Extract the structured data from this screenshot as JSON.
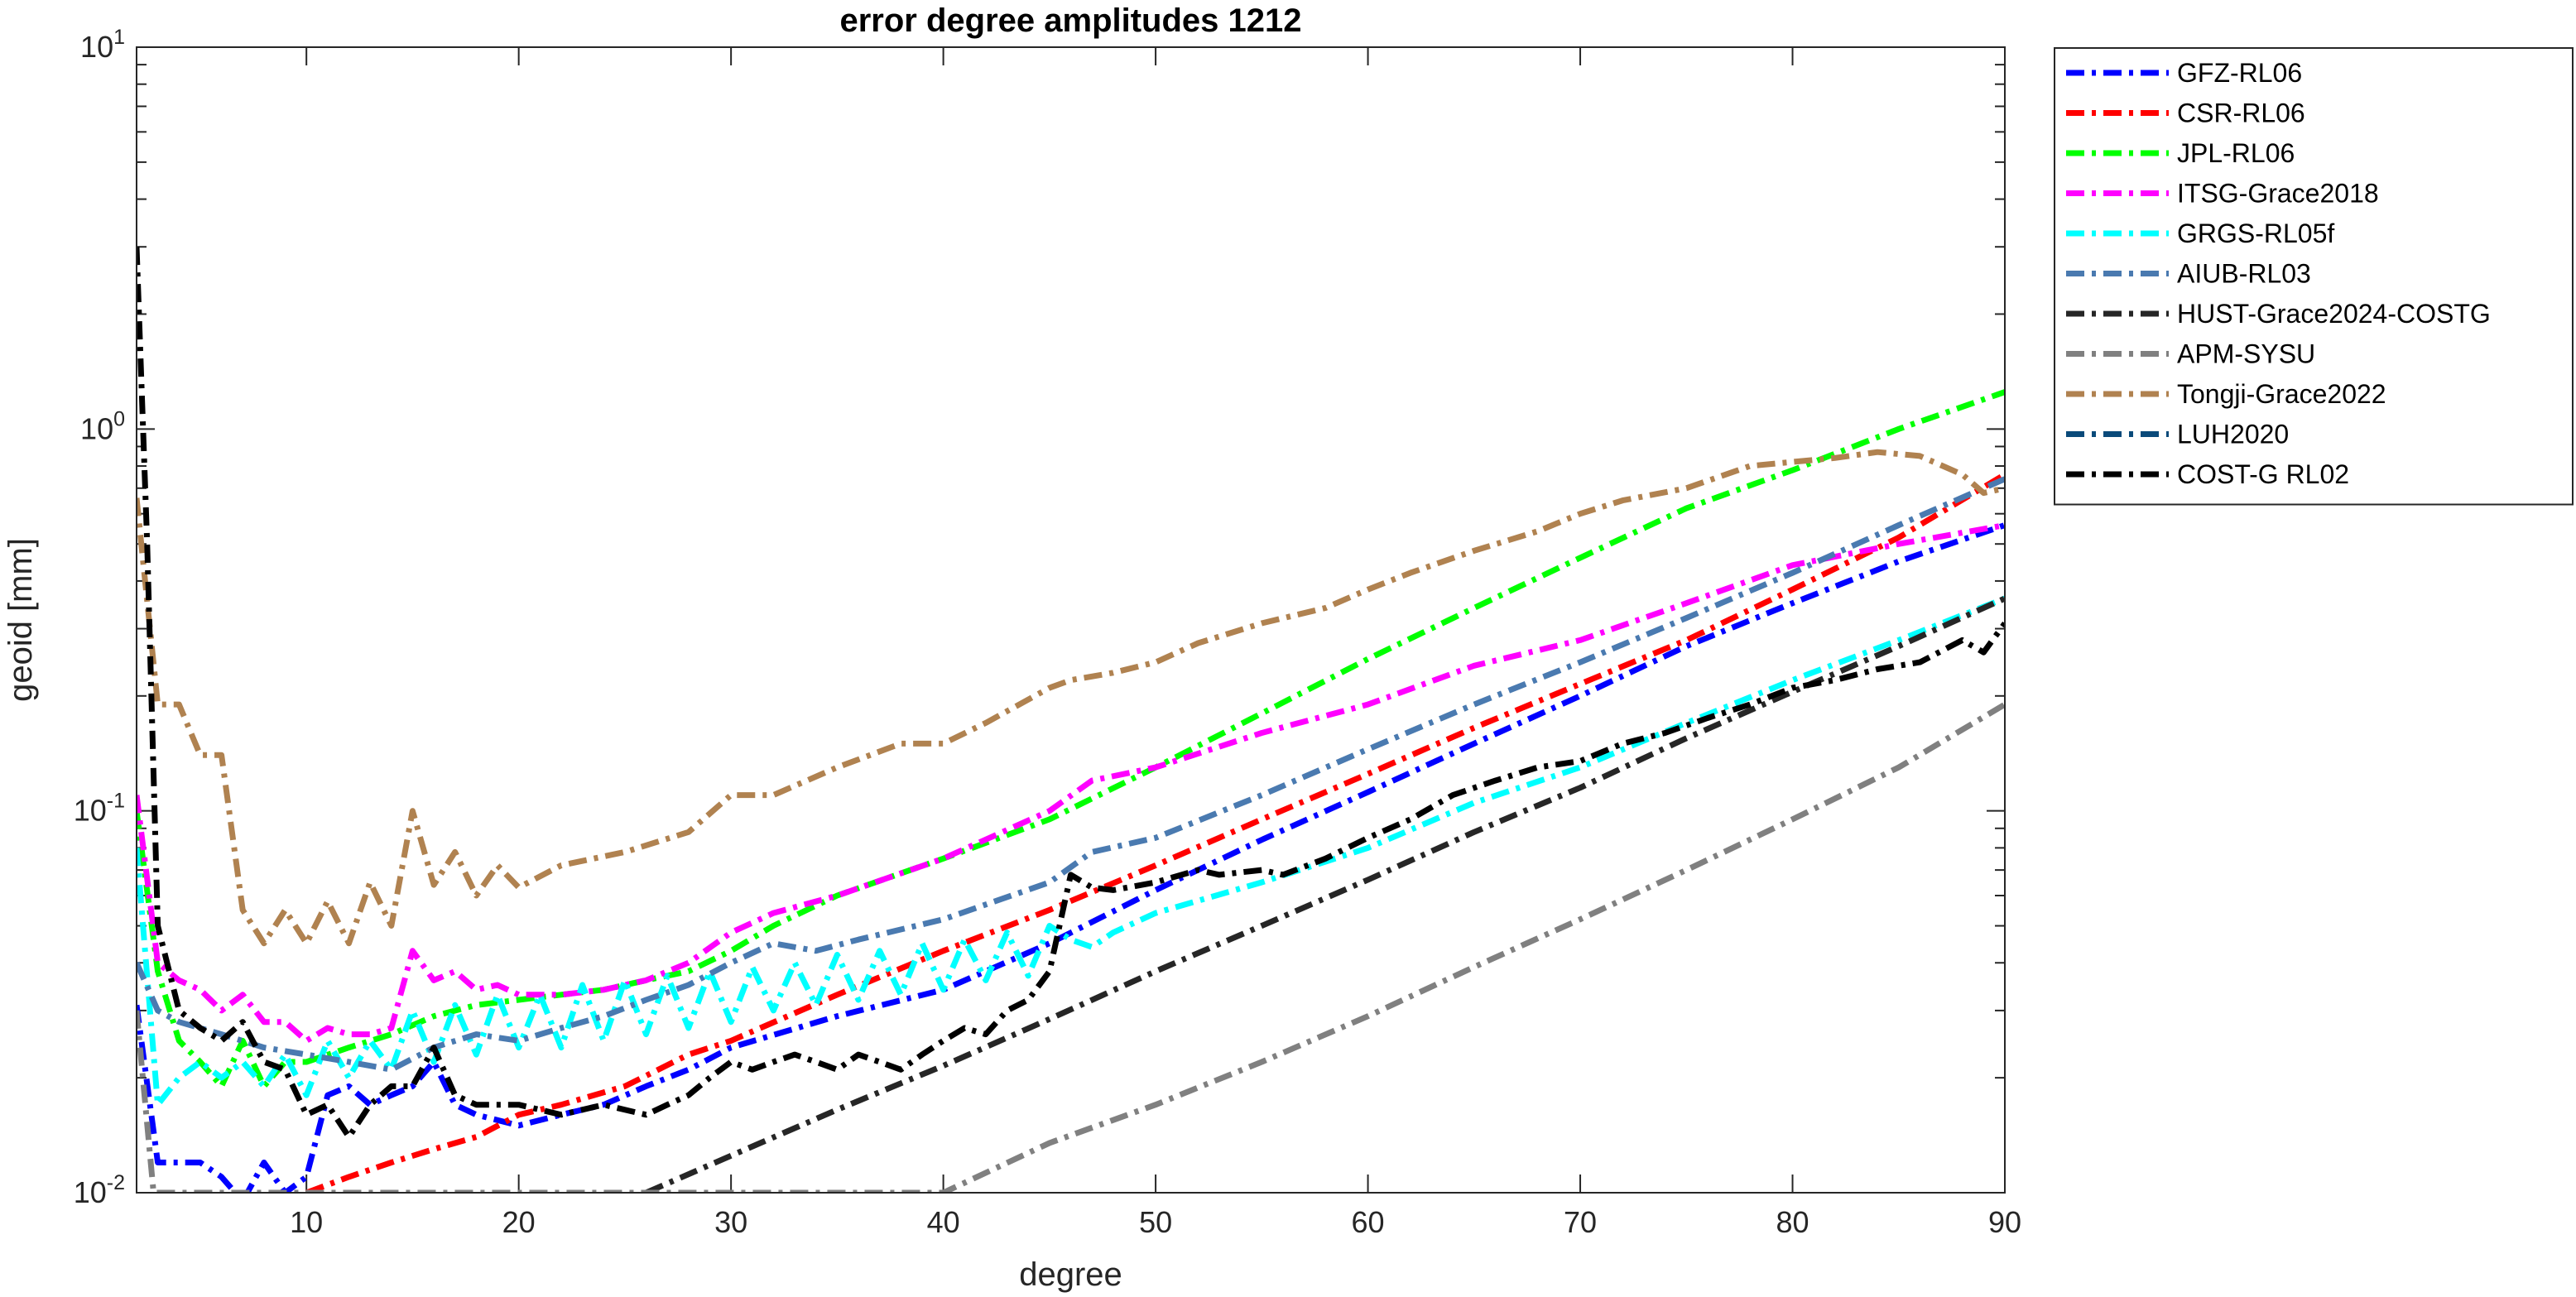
{
  "chart_data": {
    "type": "line",
    "title": "error degree amplitudes 1212",
    "xlabel": "degree",
    "ylabel": "geoid [mm]",
    "xlim": [
      2,
      90
    ],
    "ylim": [
      0.01,
      10
    ],
    "yscale": "log",
    "x_ticks": [
      10,
      20,
      30,
      40,
      50,
      60,
      70,
      80,
      90
    ],
    "y_ticks": [
      {
        "value": 0.01,
        "base": "10",
        "exp": "-2"
      },
      {
        "value": 0.1,
        "base": "10",
        "exp": "-1"
      },
      {
        "value": 1,
        "base": "10",
        "exp": "0"
      },
      {
        "value": 10,
        "base": "10",
        "exp": "1"
      }
    ],
    "grid": false,
    "legend_position": "outside-right-top",
    "series": [
      {
        "name": "GFZ-RL06",
        "color": "#0000ff",
        "dash": "dashdot",
        "x": [
          2,
          3,
          4,
          5,
          6,
          7,
          8,
          9,
          10,
          11,
          12,
          13,
          14,
          15,
          16,
          17,
          18,
          20,
          22,
          24,
          26,
          28,
          30,
          35,
          40,
          45,
          50,
          55,
          60,
          65,
          70,
          75,
          80,
          85,
          90
        ],
        "y": [
          0.031,
          0.012,
          0.012,
          0.012,
          0.011,
          0.0095,
          0.012,
          0.01,
          0.011,
          0.018,
          0.019,
          0.017,
          0.018,
          0.019,
          0.022,
          0.017,
          0.016,
          0.015,
          0.016,
          0.017,
          0.019,
          0.021,
          0.024,
          0.029,
          0.034,
          0.045,
          0.062,
          0.084,
          0.112,
          0.15,
          0.2,
          0.27,
          0.35,
          0.45,
          0.56
        ]
      },
      {
        "name": "CSR-RL06",
        "color": "#ff0000",
        "dash": "dashdot",
        "x": [
          10,
          12,
          14,
          16,
          18,
          20,
          22,
          25,
          28,
          30,
          35,
          40,
          45,
          50,
          55,
          60,
          65,
          70,
          75,
          80,
          85,
          90
        ],
        "y": [
          0.01,
          0.011,
          0.012,
          0.013,
          0.014,
          0.016,
          0.017,
          0.019,
          0.023,
          0.025,
          0.033,
          0.043,
          0.055,
          0.072,
          0.095,
          0.125,
          0.165,
          0.215,
          0.28,
          0.38,
          0.52,
          0.76
        ]
      },
      {
        "name": "JPL-RL06",
        "color": "#00ff00",
        "dash": "dashdot",
        "x": [
          2,
          3,
          4,
          5,
          6,
          7,
          8,
          9,
          10,
          12,
          14,
          16,
          18,
          20,
          22,
          24,
          26,
          28,
          30,
          32,
          35,
          40,
          45,
          50,
          55,
          60,
          65,
          70,
          75,
          80,
          85,
          90
        ],
        "y": [
          0.1,
          0.038,
          0.025,
          0.022,
          0.019,
          0.025,
          0.019,
          0.022,
          0.022,
          0.024,
          0.026,
          0.029,
          0.031,
          0.032,
          0.033,
          0.034,
          0.036,
          0.038,
          0.043,
          0.05,
          0.06,
          0.075,
          0.095,
          0.13,
          0.18,
          0.25,
          0.34,
          0.46,
          0.62,
          0.78,
          1.0,
          1.25
        ]
      },
      {
        "name": "ITSG-Grace2018",
        "color": "#ff00ff",
        "dash": "dashdot",
        "x": [
          2,
          3,
          4,
          5,
          6,
          7,
          8,
          9,
          10,
          11,
          12,
          13,
          14,
          15,
          16,
          17,
          18,
          19,
          20,
          22,
          24,
          26,
          28,
          30,
          32,
          35,
          40,
          45,
          47,
          50,
          55,
          60,
          65,
          70,
          75,
          80,
          85,
          90
        ],
        "y": [
          0.11,
          0.04,
          0.036,
          0.034,
          0.03,
          0.033,
          0.028,
          0.028,
          0.025,
          0.027,
          0.026,
          0.026,
          0.027,
          0.043,
          0.036,
          0.038,
          0.034,
          0.035,
          0.033,
          0.033,
          0.034,
          0.036,
          0.04,
          0.048,
          0.054,
          0.06,
          0.075,
          0.1,
          0.12,
          0.13,
          0.16,
          0.19,
          0.24,
          0.28,
          0.35,
          0.44,
          0.5,
          0.56
        ]
      },
      {
        "name": "GRGS-RL05f",
        "color": "#00ffff",
        "dash": "dashdot",
        "x": [
          2,
          3,
          4,
          5,
          6,
          7,
          8,
          9,
          10,
          11,
          12,
          13,
          14,
          15,
          16,
          17,
          18,
          19,
          20,
          21,
          22,
          23,
          24,
          25,
          26,
          27,
          28,
          29,
          30,
          31,
          32,
          33,
          34,
          35,
          36,
          37,
          38,
          39,
          40,
          41,
          42,
          43,
          44,
          45,
          46,
          47,
          48,
          50,
          55,
          60,
          65,
          70,
          75,
          80,
          85,
          90
        ],
        "y": [
          0.08,
          0.017,
          0.02,
          0.022,
          0.02,
          0.022,
          0.019,
          0.023,
          0.018,
          0.025,
          0.02,
          0.025,
          0.021,
          0.03,
          0.022,
          0.031,
          0.023,
          0.033,
          0.024,
          0.033,
          0.024,
          0.035,
          0.025,
          0.036,
          0.026,
          0.037,
          0.027,
          0.038,
          0.028,
          0.039,
          0.03,
          0.04,
          0.031,
          0.042,
          0.032,
          0.043,
          0.033,
          0.045,
          0.034,
          0.046,
          0.036,
          0.048,
          0.037,
          0.05,
          0.046,
          0.044,
          0.048,
          0.054,
          0.065,
          0.08,
          0.105,
          0.13,
          0.17,
          0.22,
          0.28,
          0.36
        ]
      },
      {
        "name": "AIUB-RL03",
        "color": "#4a7ab0",
        "dash": "dashdot",
        "x": [
          2,
          3,
          4,
          6,
          8,
          10,
          12,
          14,
          16,
          18,
          20,
          22,
          24,
          26,
          28,
          30,
          32,
          34,
          36,
          40,
          45,
          47,
          50,
          55,
          60,
          65,
          70,
          75,
          80,
          85,
          90
        ],
        "y": [
          0.04,
          0.03,
          0.028,
          0.026,
          0.024,
          0.023,
          0.022,
          0.021,
          0.024,
          0.026,
          0.025,
          0.027,
          0.029,
          0.032,
          0.035,
          0.04,
          0.045,
          0.043,
          0.046,
          0.052,
          0.065,
          0.078,
          0.085,
          0.11,
          0.145,
          0.19,
          0.245,
          0.32,
          0.42,
          0.56,
          0.74
        ]
      },
      {
        "name": "HUST-Grace2024-COSTG",
        "color": "#262626",
        "dash": "dashdot",
        "x": [
          26,
          30,
          35,
          40,
          45,
          50,
          55,
          60,
          65,
          70,
          75,
          80,
          85,
          90
        ],
        "y": [
          0.01,
          0.0125,
          0.0165,
          0.0215,
          0.0285,
          0.038,
          0.05,
          0.066,
          0.088,
          0.115,
          0.155,
          0.205,
          0.27,
          0.36
        ]
      },
      {
        "name": "APM-SYSU",
        "color": "#808080",
        "dash": "dashdot",
        "x": [
          2,
          2.8,
          40,
          45,
          50,
          55,
          60,
          65,
          70,
          75,
          80,
          85,
          90
        ],
        "y": [
          0.03,
          0.01,
          0.01,
          0.0135,
          0.017,
          0.022,
          0.029,
          0.039,
          0.052,
          0.07,
          0.095,
          0.13,
          0.19
        ]
      },
      {
        "name": "Tongji-Grace2022",
        "color": "#b08250",
        "dash": "dashdot",
        "x": [
          2,
          3,
          4,
          5,
          6,
          7,
          8,
          9,
          10,
          11,
          12,
          13,
          14,
          15,
          16,
          17,
          18,
          19,
          20,
          22,
          25,
          28,
          30,
          32,
          35,
          38,
          40,
          42,
          45,
          46,
          48,
          50,
          52,
          55,
          58,
          60,
          62,
          65,
          68,
          70,
          72,
          75,
          78,
          80,
          82,
          84,
          86,
          88,
          89,
          90
        ],
        "y": [
          0.66,
          0.19,
          0.19,
          0.14,
          0.14,
          0.055,
          0.045,
          0.055,
          0.045,
          0.058,
          0.045,
          0.065,
          0.05,
          0.1,
          0.064,
          0.078,
          0.06,
          0.072,
          0.063,
          0.072,
          0.078,
          0.088,
          0.11,
          0.11,
          0.13,
          0.15,
          0.15,
          0.17,
          0.21,
          0.22,
          0.23,
          0.245,
          0.275,
          0.31,
          0.34,
          0.38,
          0.42,
          0.48,
          0.54,
          0.6,
          0.65,
          0.7,
          0.8,
          0.82,
          0.84,
          0.87,
          0.85,
          0.76,
          0.68,
          0.7
        ]
      },
      {
        "name": "LUH2020",
        "color": "#0a4a7a",
        "dash": "dashdot",
        "x": [],
        "y": []
      },
      {
        "name": "COST-G RL02",
        "color": "#000000",
        "dash": "dashdot",
        "x": [
          2,
          2.5,
          3,
          4,
          5,
          6,
          7,
          8,
          9,
          10,
          11,
          12,
          13,
          14,
          15,
          16,
          17,
          18,
          19,
          20,
          22,
          24,
          26,
          27,
          28,
          29,
          30,
          31,
          32,
          33,
          34,
          35,
          36,
          37,
          38,
          39,
          40,
          41,
          42,
          43,
          44,
          45,
          46,
          47,
          48,
          50,
          52,
          53,
          55,
          56,
          58,
          60,
          62,
          64,
          66,
          68,
          70,
          72,
          74,
          76,
          78,
          80,
          82,
          84,
          86,
          88,
          89,
          90
        ],
        "y": [
          3.0,
          0.5,
          0.05,
          0.03,
          0.027,
          0.025,
          0.028,
          0.022,
          0.021,
          0.016,
          0.017,
          0.014,
          0.017,
          0.019,
          0.019,
          0.024,
          0.018,
          0.017,
          0.017,
          0.017,
          0.016,
          0.017,
          0.016,
          0.017,
          0.018,
          0.02,
          0.022,
          0.021,
          0.022,
          0.023,
          0.022,
          0.021,
          0.023,
          0.022,
          0.021,
          0.023,
          0.025,
          0.027,
          0.026,
          0.03,
          0.032,
          0.038,
          0.068,
          0.063,
          0.062,
          0.065,
          0.07,
          0.068,
          0.07,
          0.068,
          0.075,
          0.085,
          0.095,
          0.11,
          0.12,
          0.13,
          0.135,
          0.15,
          0.16,
          0.175,
          0.19,
          0.21,
          0.22,
          0.235,
          0.245,
          0.28,
          0.26,
          0.31
        ]
      }
    ]
  }
}
